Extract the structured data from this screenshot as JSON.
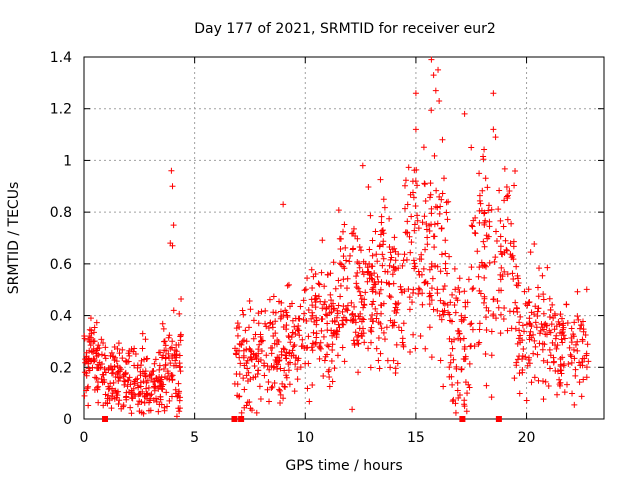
{
  "chart_data": {
    "type": "scatter",
    "title": "Day 177 of 2021, SRMTID for receiver eur2",
    "xlabel": "GPS time / hours",
    "ylabel": "SRMTID / TECUs",
    "xlim": [
      0,
      23.5
    ],
    "ylim": [
      0,
      1.4
    ],
    "x_ticks": [
      0,
      5,
      10,
      15,
      20
    ],
    "y_ticks": [
      0,
      0.2,
      0.4,
      0.6,
      0.8,
      1,
      1.2,
      1.4
    ],
    "x_tick_labels": [
      "0",
      "5",
      "10",
      "15",
      "20"
    ],
    "y_tick_labels": [
      "0",
      "0.2",
      "0.4",
      "0.6",
      "0.8",
      "1",
      "1.2",
      "1.4"
    ],
    "grid": true,
    "marker": "plus",
    "color": "#ff0000",
    "series": [
      {
        "name": "SRMTID",
        "description": "approximate envelope of the dense scatter: center value and spread per hour",
        "segments": [
          {
            "t_start": 0.0,
            "t_end": 1.0,
            "center": 0.22,
            "spread": 0.08,
            "points": 90
          },
          {
            "t_start": 1.0,
            "t_end": 2.5,
            "center": 0.16,
            "spread": 0.06,
            "points": 110
          },
          {
            "t_start": 2.5,
            "t_end": 3.5,
            "center": 0.14,
            "spread": 0.07,
            "points": 80
          },
          {
            "t_start": 3.5,
            "t_end": 4.4,
            "center": 0.2,
            "spread": 0.1,
            "points": 80
          },
          {
            "t_start": 6.8,
            "t_end": 8.5,
            "center": 0.25,
            "spread": 0.1,
            "points": 110
          },
          {
            "t_start": 8.5,
            "t_end": 10.0,
            "center": 0.3,
            "spread": 0.11,
            "points": 110
          },
          {
            "t_start": 10.0,
            "t_end": 11.5,
            "center": 0.35,
            "spread": 0.13,
            "points": 110
          },
          {
            "t_start": 11.5,
            "t_end": 13.0,
            "center": 0.48,
            "spread": 0.14,
            "points": 120
          },
          {
            "t_start": 13.0,
            "t_end": 14.5,
            "center": 0.5,
            "spread": 0.15,
            "points": 120
          },
          {
            "t_start": 14.5,
            "t_end": 16.5,
            "center": 0.65,
            "spread": 0.2,
            "points": 140
          },
          {
            "t_start": 16.5,
            "t_end": 17.5,
            "center": 0.3,
            "spread": 0.15,
            "points": 70
          },
          {
            "t_start": 17.5,
            "t_end": 19.5,
            "center": 0.62,
            "spread": 0.2,
            "points": 130
          },
          {
            "t_start": 19.5,
            "t_end": 21.0,
            "center": 0.35,
            "spread": 0.14,
            "points": 100
          },
          {
            "t_start": 21.0,
            "t_end": 22.8,
            "center": 0.28,
            "spread": 0.1,
            "points": 110
          }
        ],
        "outliers": [
          {
            "x": 3.95,
            "y": 0.96
          },
          {
            "x": 4.0,
            "y": 0.9
          },
          {
            "x": 4.05,
            "y": 0.75
          },
          {
            "x": 3.9,
            "y": 0.68
          },
          {
            "x": 4.0,
            "y": 0.67
          },
          {
            "x": 9.0,
            "y": 0.83
          },
          {
            "x": 15.0,
            "y": 1.26
          },
          {
            "x": 15.7,
            "y": 1.39
          },
          {
            "x": 15.8,
            "y": 1.33
          },
          {
            "x": 16.0,
            "y": 1.35
          },
          {
            "x": 15.9,
            "y": 1.27
          },
          {
            "x": 16.05,
            "y": 1.23
          },
          {
            "x": 18.5,
            "y": 1.26
          },
          {
            "x": 17.2,
            "y": 1.18
          },
          {
            "x": 15.0,
            "y": 1.12
          },
          {
            "x": 18.5,
            "y": 1.12
          },
          {
            "x": 18.6,
            "y": 1.09
          },
          {
            "x": 16.2,
            "y": 1.08
          },
          {
            "x": 17.5,
            "y": 1.05
          },
          {
            "x": 12.6,
            "y": 0.98
          },
          {
            "x": 17.3,
            "y": 0.03
          },
          {
            "x": 17.2,
            "y": 0.05
          },
          {
            "x": 4.2,
            "y": 0.01
          },
          {
            "x": 4.3,
            "y": 0.03
          }
        ],
        "gaps_at_zero": [
          0.95,
          6.8,
          7.1,
          17.1,
          18.75
        ]
      }
    ]
  }
}
